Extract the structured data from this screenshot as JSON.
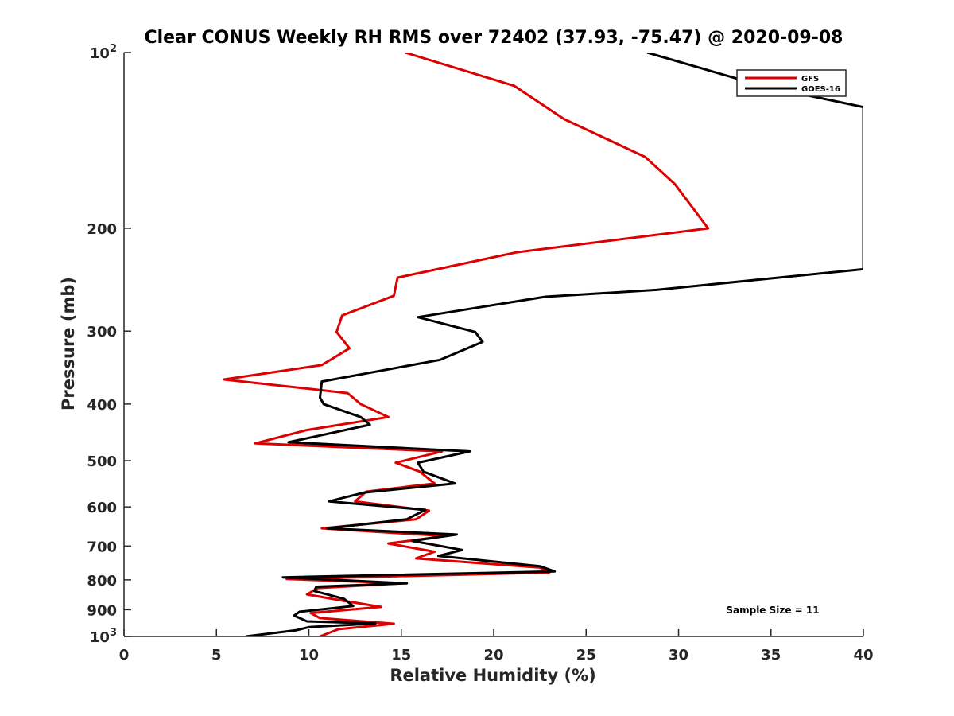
{
  "chart_data": {
    "type": "line",
    "title": "Clear CONUS Weekly RH RMS over 72402 (37.93, -75.47) @ 2020-09-08",
    "xlabel": "Relative Humidity (%)",
    "ylabel": "Pressure (mb)",
    "xlim": [
      0,
      40
    ],
    "ylim": [
      100,
      1000
    ],
    "yscale": "log",
    "y_reversed": true,
    "x_ticks": [
      0,
      5,
      10,
      15,
      20,
      25,
      30,
      35,
      40
    ],
    "x_tick_labels": [
      "0",
      "5",
      "10",
      "15",
      "20",
      "25",
      "30",
      "35",
      "40"
    ],
    "y_ticks": [
      100,
      200,
      300,
      400,
      500,
      600,
      700,
      800,
      900,
      1000
    ],
    "y_tick_labels": [
      {
        "base": "10",
        "exp": "2"
      },
      {
        "base": "200",
        "exp": ""
      },
      {
        "base": "300",
        "exp": ""
      },
      {
        "base": "400",
        "exp": ""
      },
      {
        "base": "500",
        "exp": ""
      },
      {
        "base": "600",
        "exp": ""
      },
      {
        "base": "700",
        "exp": ""
      },
      {
        "base": "800",
        "exp": ""
      },
      {
        "base": "900",
        "exp": ""
      },
      {
        "base": "10",
        "exp": "3"
      }
    ],
    "legend_position": "top-right",
    "annotation": "Sample Size = 11",
    "series": [
      {
        "name": "GFS",
        "color": "#dd0000",
        "points": [
          [
            15.2,
            100
          ],
          [
            21.1,
            114
          ],
          [
            23.8,
            130
          ],
          [
            28.2,
            151
          ],
          [
            29.8,
            168
          ],
          [
            31.6,
            200
          ],
          [
            21.2,
            220
          ],
          [
            14.8,
            243
          ],
          [
            14.6,
            261
          ],
          [
            11.8,
            282
          ],
          [
            11.5,
            301
          ],
          [
            12.2,
            321
          ],
          [
            10.7,
            343
          ],
          [
            5.4,
            363
          ],
          [
            12.1,
            383
          ],
          [
            12.8,
            400
          ],
          [
            14.3,
            421
          ],
          [
            9.9,
            443
          ],
          [
            7.1,
            467
          ],
          [
            17.2,
            482
          ],
          [
            14.7,
            504
          ],
          [
            16.0,
            522
          ],
          [
            16.8,
            547
          ],
          [
            13.1,
            565
          ],
          [
            12.5,
            587
          ],
          [
            16.5,
            609
          ],
          [
            15.8,
            630
          ],
          [
            10.7,
            653
          ],
          [
            17.4,
            673
          ],
          [
            14.3,
            693
          ],
          [
            16.8,
            716
          ],
          [
            15.8,
            735
          ],
          [
            22.5,
            762
          ],
          [
            23.0,
            777
          ],
          [
            8.8,
            797
          ],
          [
            15.0,
            811
          ],
          [
            10.5,
            826
          ],
          [
            9.9,
            847
          ],
          [
            11.6,
            866
          ],
          [
            13.9,
            890
          ],
          [
            10.1,
            912
          ],
          [
            10.6,
            930
          ],
          [
            14.6,
            951
          ],
          [
            11.6,
            972
          ],
          [
            10.6,
            1000
          ]
        ]
      },
      {
        "name": "GOES-16",
        "color": "#000000",
        "points": [
          [
            28.3,
            100
          ],
          [
            34.5,
            114
          ],
          [
            40.0,
            124
          ],
          [
            40.0,
            235
          ],
          [
            28.8,
            255
          ],
          [
            22.8,
            262
          ],
          [
            15.9,
            284
          ],
          [
            19.0,
            301
          ],
          [
            19.4,
            313
          ],
          [
            17.1,
            336
          ],
          [
            10.7,
            366
          ],
          [
            10.6,
            390
          ],
          [
            10.8,
            400
          ],
          [
            12.8,
            421
          ],
          [
            13.3,
            434
          ],
          [
            8.9,
            465
          ],
          [
            18.7,
            482
          ],
          [
            15.9,
            504
          ],
          [
            16.2,
            522
          ],
          [
            17.9,
            547
          ],
          [
            13.0,
            567
          ],
          [
            11.1,
            587
          ],
          [
            16.3,
            607
          ],
          [
            15.3,
            630
          ],
          [
            11.0,
            653
          ],
          [
            18.0,
            669
          ],
          [
            15.6,
            686
          ],
          [
            18.3,
            711
          ],
          [
            17.0,
            728
          ],
          [
            22.5,
            758
          ],
          [
            23.3,
            774
          ],
          [
            8.6,
            792
          ],
          [
            15.3,
            811
          ],
          [
            10.4,
            822
          ],
          [
            10.3,
            836
          ],
          [
            11.9,
            862
          ],
          [
            12.4,
            887
          ],
          [
            9.5,
            907
          ],
          [
            9.2,
            921
          ],
          [
            9.9,
            942
          ],
          [
            13.6,
            950
          ],
          [
            10.0,
            964
          ],
          [
            9.3,
            976
          ],
          [
            6.6,
            1000
          ]
        ]
      }
    ]
  }
}
